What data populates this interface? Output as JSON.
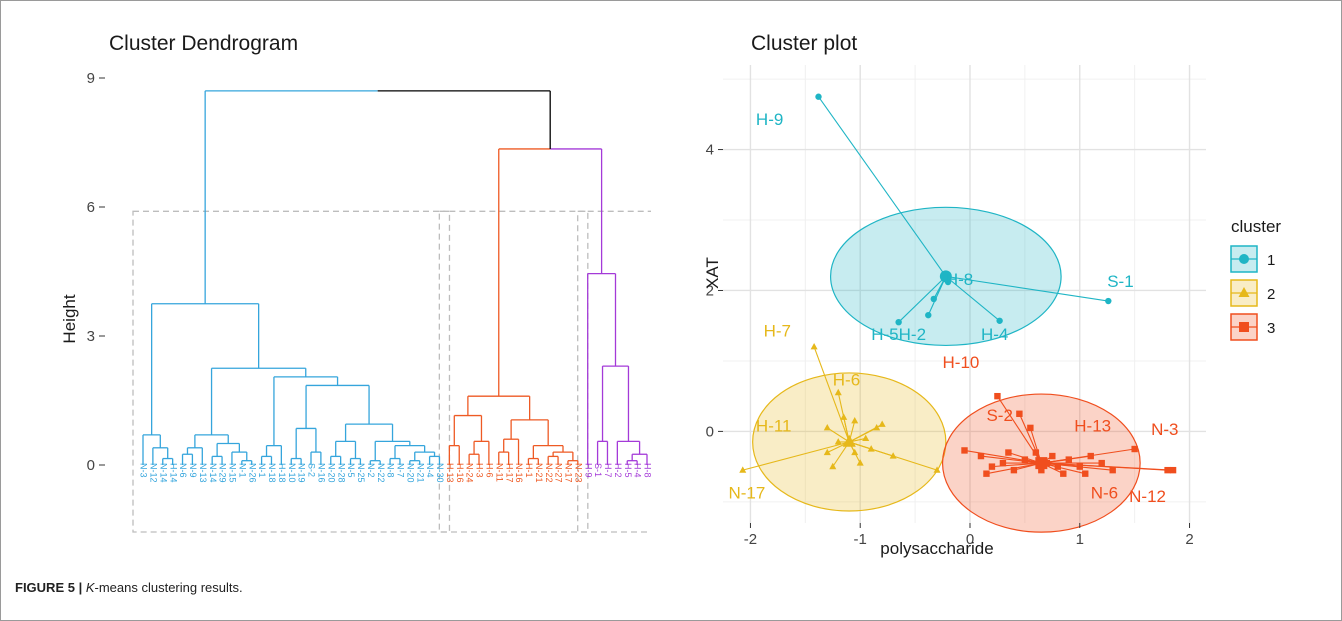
{
  "caption": {
    "label": "FIGURE 5 |",
    "text_lead": "K",
    "text_rest": "-means clustering results."
  },
  "chart_data": [
    {
      "type": "dendrogram",
      "title": "Cluster Dendrogram",
      "ylabel": "Height",
      "ylim": [
        -1,
        9
      ],
      "yticks": [
        0,
        3,
        6,
        9
      ],
      "leaves": [
        "N-3",
        "N-12",
        "N-14",
        "H-14",
        "N-6",
        "N-9",
        "N-13",
        "N-14",
        "N-29",
        "N-15",
        "N-1",
        "N-26",
        "N-1",
        "N-18",
        "H-18",
        "N-10",
        "N-19",
        "S-2",
        "N-16",
        "N-20",
        "N-28",
        "N-5",
        "N-25",
        "N-2",
        "N-22",
        "N-8",
        "N-7",
        "N-20",
        "N-21",
        "N-4",
        "N-30",
        "H-13",
        "H-16",
        "N-24",
        "H-3",
        "H-6",
        "N-11",
        "H-17",
        "N-16",
        "H-1",
        "N-21",
        "N-22",
        "N-27",
        "N-17",
        "N-23",
        "H-9",
        "S-1",
        "H-7",
        "H-2",
        "H-5",
        "H-4",
        "H-8"
      ],
      "cluster_colors": [
        "#35a5dc",
        "#ee5a24",
        "#a43ad8"
      ],
      "root_link_color": "#000000",
      "merges": [
        {
          "height": 8.7,
          "note": "root"
        },
        {
          "height": 7.35,
          "note": "cluster 2 + cluster 3"
        },
        {
          "height": 4.45,
          "note": "cluster 3 subtree"
        },
        {
          "height": 3.75,
          "note": "cluster 1 subtree"
        },
        {
          "height": 2.3,
          "note": "cluster 3 sub"
        },
        {
          "height": 2.25,
          "note": "cluster 1 sub"
        },
        {
          "height": 1.6,
          "note": "cluster 2 subtree"
        }
      ]
    },
    {
      "type": "scatter",
      "title": "Cluster plot",
      "xlabel": "polysaccharide",
      "ylabel": "XAT",
      "xlim": [
        -2.25,
        2.15
      ],
      "ylim": [
        -1.3,
        5.2
      ],
      "xticks": [
        -2,
        -1,
        0,
        1,
        2
      ],
      "yticks": [
        0,
        2,
        4
      ],
      "legend": {
        "title": "cluster",
        "position": "right",
        "items": [
          "1",
          "2",
          "3"
        ]
      },
      "series": [
        {
          "name": "1",
          "color": "#1fb5c5",
          "marker": "circle",
          "center": [
            -0.22,
            2.2
          ],
          "points": [
            [
              -1.38,
              4.75
            ],
            [
              1.26,
              1.85
            ],
            [
              -0.65,
              1.55
            ],
            [
              -0.38,
              1.65
            ],
            [
              -0.33,
              1.88
            ],
            [
              0.27,
              1.57
            ],
            [
              -0.2,
              2.12
            ]
          ],
          "labels": [
            "H-9",
            "S-1",
            "H-5",
            "H-2",
            "H-4",
            "H-8"
          ]
        },
        {
          "name": "2",
          "color": "#e6b81a",
          "marker": "triangle",
          "center": [
            -1.1,
            -0.15
          ],
          "points": [
            [
              -1.42,
              1.2
            ],
            [
              -2.07,
              -0.55
            ],
            [
              -0.3,
              -0.55
            ],
            [
              -1.2,
              0.55
            ],
            [
              -1.05,
              0.15
            ],
            [
              -0.8,
              0.1
            ],
            [
              -1.3,
              -0.3
            ],
            [
              -0.9,
              -0.25
            ],
            [
              -1.25,
              -0.5
            ],
            [
              -1.15,
              0.2
            ],
            [
              -0.95,
              -0.1
            ],
            [
              -1.3,
              0.05
            ],
            [
              -0.7,
              -0.35
            ],
            [
              -1.0,
              -0.45
            ],
            [
              -1.2,
              -0.15
            ],
            [
              -1.05,
              -0.3
            ],
            [
              -0.85,
              0.05
            ]
          ],
          "labels": [
            "H-7",
            "H-6",
            "H-11",
            "N-17"
          ]
        },
        {
          "name": "3",
          "color": "#f04e1e",
          "marker": "square",
          "center": [
            0.65,
            -0.45
          ],
          "points": [
            [
              0.25,
              0.5
            ],
            [
              0.45,
              0.25
            ],
            [
              0.55,
              0.05
            ],
            [
              1.5,
              -0.25
            ],
            [
              1.8,
              -0.55
            ],
            [
              1.85,
              -0.55
            ],
            [
              -0.05,
              -0.27
            ],
            [
              0.1,
              -0.35
            ],
            [
              0.15,
              -0.6
            ],
            [
              0.3,
              -0.45
            ],
            [
              0.4,
              -0.55
            ],
            [
              0.5,
              -0.4
            ],
            [
              0.6,
              -0.3
            ],
            [
              0.7,
              -0.45
            ],
            [
              0.75,
              -0.35
            ],
            [
              0.8,
              -0.5
            ],
            [
              0.9,
              -0.4
            ],
            [
              1.0,
              -0.5
            ],
            [
              1.1,
              -0.35
            ],
            [
              1.2,
              -0.45
            ],
            [
              1.3,
              -0.55
            ],
            [
              0.2,
              -0.5
            ],
            [
              0.35,
              -0.3
            ],
            [
              0.65,
              -0.55
            ],
            [
              0.85,
              -0.6
            ],
            [
              1.05,
              -0.6
            ]
          ],
          "labels": [
            "H-10",
            "S-2",
            "H-13",
            "N-3",
            "N-6",
            "N-12"
          ]
        }
      ]
    }
  ]
}
